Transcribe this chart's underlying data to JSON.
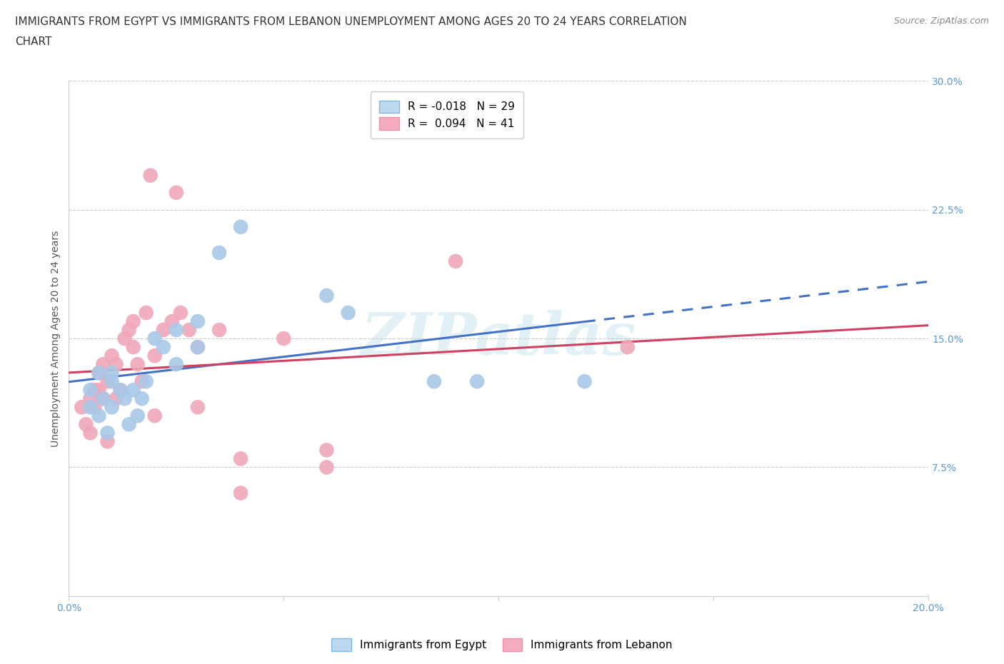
{
  "title_line1": "IMMIGRANTS FROM EGYPT VS IMMIGRANTS FROM LEBANON UNEMPLOYMENT AMONG AGES 20 TO 24 YEARS CORRELATION",
  "title_line2": "CHART",
  "source": "Source: ZipAtlas.com",
  "ylabel": "Unemployment Among Ages 20 to 24 years",
  "egypt_color": "#A8C8E8",
  "lebanon_color": "#F0A8B8",
  "egypt_R": -0.018,
  "egypt_N": 29,
  "lebanon_R": 0.094,
  "lebanon_N": 41,
  "egypt_line_color": "#4472C4",
  "lebanon_line_color": "#D04060",
  "xlim": [
    0.0,
    0.2
  ],
  "ylim": [
    0.0,
    0.3
  ],
  "yticks": [
    0.0,
    0.075,
    0.15,
    0.225,
    0.3
  ],
  "ytick_labels": [
    "",
    "7.5%",
    "15.0%",
    "22.5%",
    "30.0%"
  ],
  "xtick_positions": [
    0.0,
    0.05,
    0.1,
    0.15,
    0.2
  ],
  "xtick_labels": [
    "0.0%",
    "",
    "",
    "",
    "20.0%"
  ],
  "grid_color": "#CCCCCC",
  "background_color": "#FFFFFF",
  "watermark": "ZIPatlas",
  "egypt_x": [
    0.005,
    0.005,
    0.007,
    0.007,
    0.008,
    0.009,
    0.01,
    0.01,
    0.01,
    0.012,
    0.013,
    0.014,
    0.015,
    0.016,
    0.017,
    0.018,
    0.02,
    0.022,
    0.025,
    0.025,
    0.03,
    0.03,
    0.035,
    0.04,
    0.06,
    0.065,
    0.085,
    0.095,
    0.12
  ],
  "egypt_y": [
    0.12,
    0.11,
    0.13,
    0.105,
    0.115,
    0.095,
    0.13,
    0.125,
    0.11,
    0.12,
    0.115,
    0.1,
    0.12,
    0.105,
    0.115,
    0.125,
    0.15,
    0.145,
    0.155,
    0.135,
    0.16,
    0.145,
    0.2,
    0.215,
    0.175,
    0.165,
    0.125,
    0.125,
    0.125
  ],
  "lebanon_x": [
    0.003,
    0.004,
    0.005,
    0.005,
    0.006,
    0.006,
    0.007,
    0.007,
    0.008,
    0.008,
    0.009,
    0.009,
    0.01,
    0.011,
    0.011,
    0.012,
    0.013,
    0.014,
    0.015,
    0.015,
    0.016,
    0.017,
    0.018,
    0.019,
    0.02,
    0.02,
    0.022,
    0.024,
    0.025,
    0.026,
    0.028,
    0.03,
    0.03,
    0.035,
    0.04,
    0.04,
    0.05,
    0.06,
    0.06,
    0.09,
    0.13
  ],
  "lebanon_y": [
    0.11,
    0.1,
    0.115,
    0.095,
    0.12,
    0.11,
    0.13,
    0.12,
    0.135,
    0.115,
    0.125,
    0.09,
    0.14,
    0.135,
    0.115,
    0.12,
    0.15,
    0.155,
    0.16,
    0.145,
    0.135,
    0.125,
    0.165,
    0.245,
    0.14,
    0.105,
    0.155,
    0.16,
    0.235,
    0.165,
    0.155,
    0.145,
    0.11,
    0.155,
    0.08,
    0.06,
    0.15,
    0.085,
    0.075,
    0.195,
    0.145
  ],
  "legend_box_color_egypt": "#BDD7EE",
  "legend_box_color_lebanon": "#F4ACBE",
  "title_fontsize": 11,
  "axis_label_fontsize": 10,
  "tick_fontsize": 10,
  "legend_fontsize": 11
}
